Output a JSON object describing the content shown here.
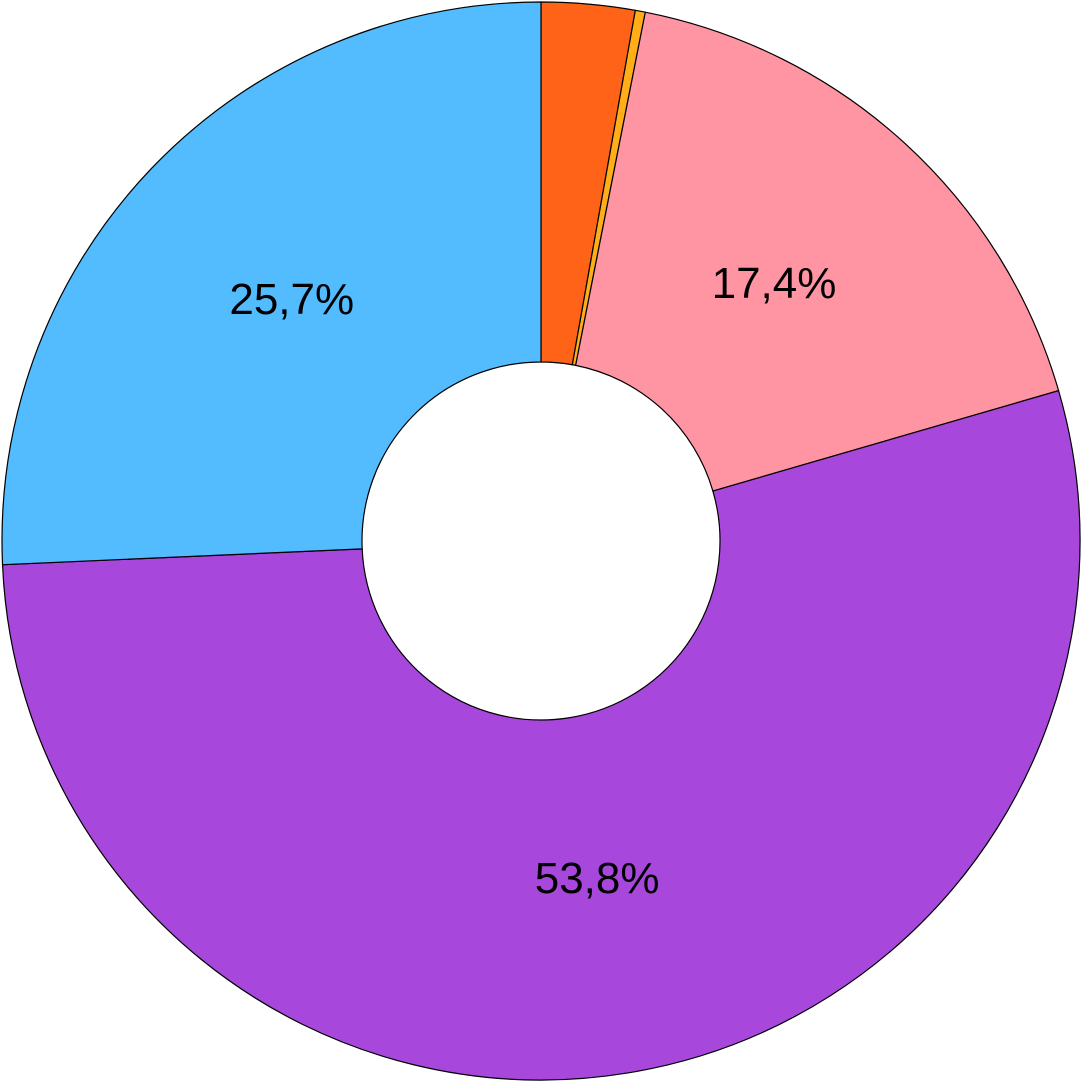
{
  "chart_data": {
    "type": "donut",
    "values": [
      2.8,
      0.3,
      17.4,
      53.8,
      25.7
    ],
    "value_labels": [
      null,
      null,
      "17,4%",
      "53,8%",
      "25,7%"
    ],
    "colors": [
      "#ff6318",
      "#ffad18",
      "#ff94a3",
      "#a847dc",
      "#52bcff"
    ]
  }
}
